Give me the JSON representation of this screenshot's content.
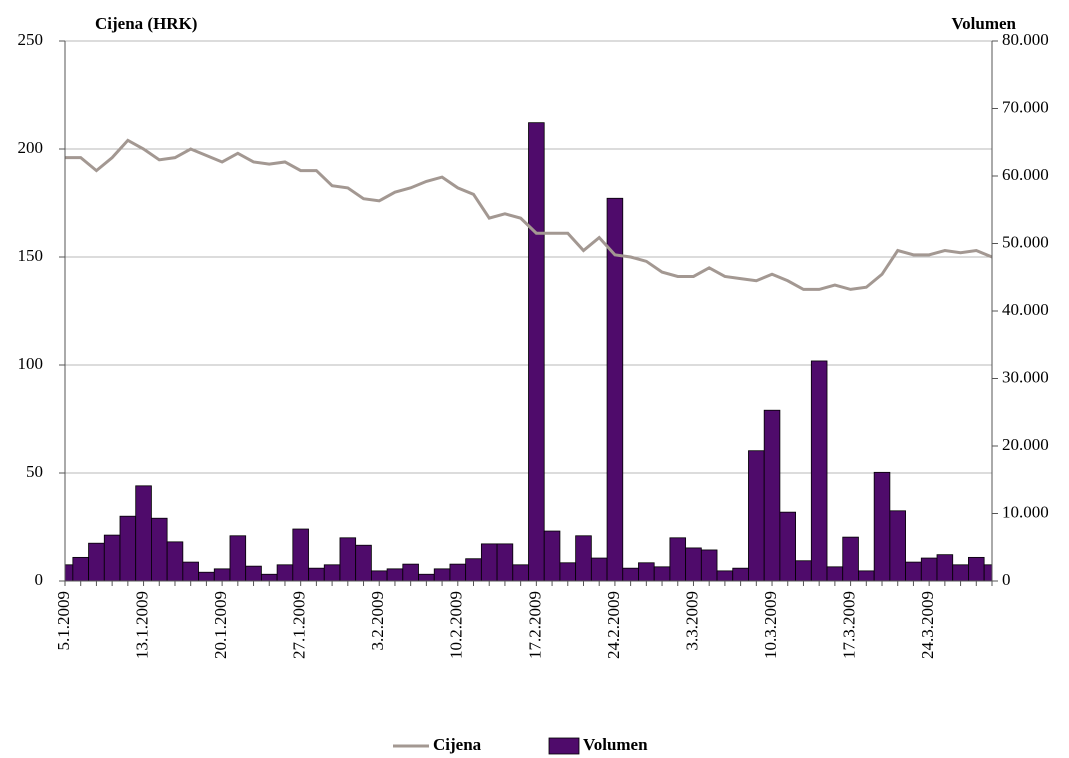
{
  "chart_data": {
    "type": "combo",
    "ylabel": "Cijena (HRK)",
    "y2label": "Volumen",
    "categories": [
      "5.1.2009",
      null,
      null,
      null,
      null,
      "13.1.2009",
      null,
      null,
      null,
      null,
      "20.1.2009",
      null,
      null,
      null,
      null,
      "27.1.2009",
      null,
      null,
      null,
      null,
      "3.2.2009",
      null,
      null,
      null,
      null,
      "10.2.2009",
      null,
      null,
      null,
      null,
      "17.2.2009",
      null,
      null,
      null,
      null,
      "24.2.2009",
      null,
      null,
      null,
      null,
      "3.3.2009",
      null,
      null,
      null,
      null,
      "10.3.2009",
      null,
      null,
      null,
      null,
      "17.3.2009",
      null,
      null,
      null,
      null,
      "24.3.2009",
      null,
      null,
      null,
      null
    ],
    "series": [
      {
        "name": "Volumen",
        "type": "bar",
        "axis": "y2",
        "color": "#4f0b6b",
        "values": [
          2400,
          3500,
          5600,
          6800,
          9600,
          14100,
          9300,
          5800,
          2800,
          1300,
          1800,
          6700,
          2200,
          1000,
          2400,
          7700,
          1900,
          2400,
          6400,
          5300,
          1500,
          1800,
          2500,
          1000,
          1800,
          2500,
          3300,
          5500,
          5500,
          2400,
          67900,
          7400,
          2700,
          6700,
          3400,
          56700,
          1900,
          2700,
          2100,
          6400,
          4900,
          4600,
          1500,
          1900,
          19300,
          25300,
          10200,
          3000,
          32600,
          2100,
          6500,
          1500,
          16100,
          10400,
          2800,
          3400,
          3900,
          2400,
          3500,
          2400
        ]
      },
      {
        "name": "Cijena",
        "type": "line",
        "axis": "y",
        "color": "#a39892",
        "values": [
          196,
          196,
          190,
          196,
          204,
          200,
          195,
          196,
          200,
          197,
          194,
          198,
          194,
          193,
          194,
          190,
          190,
          183,
          182,
          177,
          176,
          180,
          182,
          185,
          187,
          182,
          179,
          168,
          170,
          168,
          161,
          161,
          161,
          153,
          159,
          151,
          150,
          148,
          143,
          141,
          141,
          145,
          141,
          140,
          139,
          142,
          139,
          135,
          135,
          137,
          135,
          136,
          142,
          153,
          151,
          151,
          153,
          152,
          153,
          150
        ]
      }
    ],
    "ylim": [
      0,
      250
    ],
    "yticks": [
      0,
      50,
      100,
      150,
      200,
      250
    ],
    "y2lim": [
      0,
      80000
    ],
    "y2ticks": [
      0,
      {
        "value": 10000,
        "label": "10.000"
      },
      {
        "value": 20000,
        "label": "20.000"
      },
      {
        "value": 30000,
        "label": "30.000"
      },
      {
        "value": 40000,
        "label": "40.000"
      },
      {
        "value": 50000,
        "label": "50.000"
      },
      {
        "value": 60000,
        "label": "60.000"
      },
      {
        "value": 70000,
        "label": "70.000"
      },
      {
        "value": 80000,
        "label": "80.000"
      }
    ],
    "grid": true,
    "legend": "bottom"
  }
}
